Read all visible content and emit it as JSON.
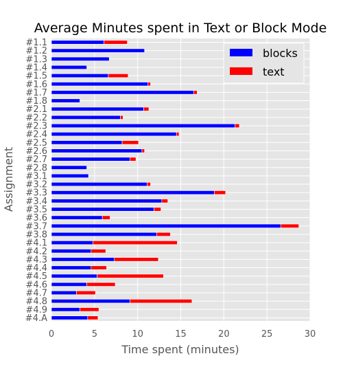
{
  "chart_data": {
    "type": "bar",
    "orientation": "horizontal",
    "stacked": true,
    "title": "Average Minutes spent in Text or Block Mode",
    "xlabel": "Time spent (minutes)",
    "ylabel": "Assignment",
    "xlim": [
      0,
      30
    ],
    "xticks": [
      0,
      5,
      10,
      15,
      20,
      25,
      30
    ],
    "grid": true,
    "legend_position": "top-right",
    "categories": [
      "#1.1",
      "#1.2",
      "#1.3",
      "#1.4",
      "#1.5",
      "#1.6",
      "#1.7",
      "#1.8",
      "#2.1",
      "#2.2",
      "#2.3",
      "#2.4",
      "#2.5",
      "#2.6",
      "#2.7",
      "#2.8",
      "#3.1",
      "#3.2",
      "#3.3",
      "#3.4",
      "#3.5",
      "#3.6",
      "#3.7",
      "#3.8",
      "#4.1",
      "#4.2",
      "#4.3",
      "#4.4",
      "#4.5",
      "#4.6",
      "#4.7",
      "#4.8",
      "#4.9",
      "#4.A"
    ],
    "series": [
      {
        "name": "blocks",
        "color": "#0000ff",
        "values": [
          6.1,
          10.8,
          6.7,
          4.1,
          6.6,
          11.2,
          16.5,
          3.3,
          10.7,
          8.0,
          21.3,
          14.5,
          8.2,
          10.5,
          9.1,
          4.1,
          4.3,
          11.1,
          18.9,
          12.8,
          11.9,
          5.9,
          26.6,
          12.2,
          4.8,
          4.6,
          7.3,
          4.6,
          5.3,
          4.1,
          2.9,
          9.1,
          3.3,
          4.2
        ]
      },
      {
        "name": "text",
        "color": "#ff0000",
        "values": [
          2.7,
          0.0,
          0.0,
          0.0,
          2.3,
          0.3,
          0.4,
          0.0,
          0.6,
          0.3,
          0.5,
          0.3,
          1.9,
          0.3,
          0.7,
          0.0,
          0.0,
          0.4,
          1.3,
          0.7,
          0.8,
          0.9,
          2.1,
          1.6,
          9.8,
          1.7,
          5.1,
          1.8,
          7.7,
          3.3,
          2.2,
          7.2,
          2.2,
          1.2
        ]
      }
    ]
  }
}
